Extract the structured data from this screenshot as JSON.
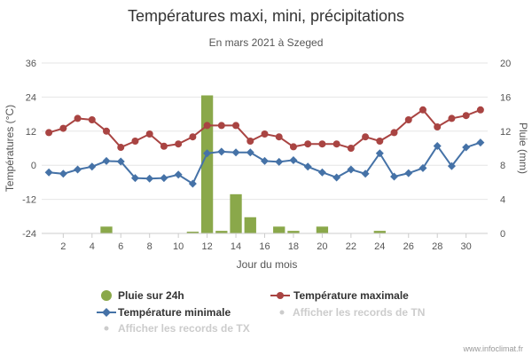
{
  "chart_data": {
    "type": "bar+line",
    "title": "Températures maxi, mini, précipitations",
    "subtitle": "En mars 2021 à Szeged",
    "xlabel": "Jour du mois",
    "ylabel_left": "Températures (°C)",
    "ylabel_right": "Pluie (mm)",
    "x": [
      1,
      2,
      3,
      4,
      5,
      6,
      7,
      8,
      9,
      10,
      11,
      12,
      13,
      14,
      15,
      16,
      17,
      18,
      19,
      20,
      21,
      22,
      23,
      24,
      25,
      26,
      27,
      28,
      29,
      30,
      31
    ],
    "x_ticks": [
      "2",
      "4",
      "6",
      "8",
      "10",
      "12",
      "14",
      "16",
      "18",
      "20",
      "22",
      "24",
      "26",
      "28",
      "30"
    ],
    "y_left_ticks": [
      "-24",
      "-12",
      "0",
      "12",
      "24",
      "36"
    ],
    "y_right_ticks": [
      "0",
      "4",
      "8",
      "12",
      "16",
      "20"
    ],
    "ylim_left": [
      -24,
      36
    ],
    "ylim_right": [
      0,
      20
    ],
    "grid": true,
    "series": [
      {
        "name": "Pluie sur 24h",
        "type": "bar",
        "axis": "right",
        "color": "#8aa84a",
        "values": [
          0,
          0,
          0,
          0,
          0.8,
          0,
          0,
          0,
          0,
          0,
          0.2,
          16.2,
          0.3,
          4.6,
          1.9,
          0,
          0.8,
          0.3,
          0,
          0.8,
          0,
          0,
          0,
          0.3,
          0,
          0,
          0,
          0,
          0,
          0,
          0
        ]
      },
      {
        "name": "Température maximale",
        "type": "line",
        "axis": "left",
        "color": "#a94442",
        "values": [
          11.5,
          13,
          16.5,
          16,
          12,
          6.3,
          8.5,
          11,
          6.7,
          7.5,
          10,
          14,
          14,
          14,
          8.5,
          11,
          10,
          6.5,
          7.5,
          7.5,
          7.5,
          6,
          10,
          8.5,
          11.5,
          16,
          19.5,
          13.5,
          16.5,
          17.5,
          19.5
        ]
      },
      {
        "name": "Température minimale",
        "type": "line",
        "axis": "left",
        "color": "#4572a7",
        "values": [
          -2.5,
          -3,
          -1.5,
          -0.5,
          1.5,
          1.3,
          -4.5,
          -4.7,
          -4.5,
          -3.3,
          -6.5,
          4.2,
          4.8,
          4.5,
          4.5,
          1.5,
          1.2,
          1.8,
          -0.5,
          -2.5,
          -4.3,
          -1.5,
          -3,
          4.2,
          -4,
          -2.8,
          -1,
          6.8,
          -0.3,
          6.3,
          8
        ]
      }
    ],
    "legend_placement": "bottom"
  },
  "legend": {
    "rain": "Pluie sur 24h",
    "tmax": "Température maximale",
    "tmin": "Température minimale",
    "records_tn": "Afficher les records de TN",
    "records_tx": "Afficher les records de TX"
  },
  "credit": "www.infoclimat.fr"
}
